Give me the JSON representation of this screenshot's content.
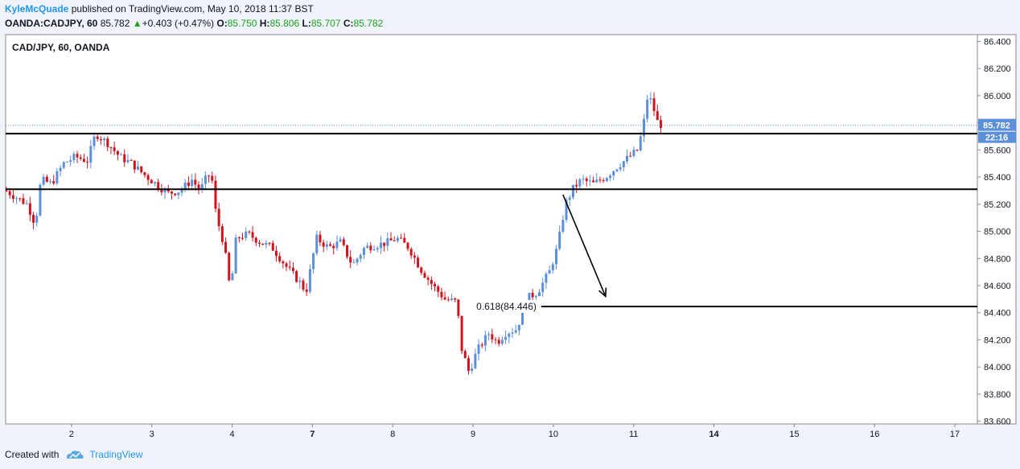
{
  "header": {
    "author": "KyleMcQuade",
    "published_text": "published on TradingView.com, May 10, 2018 11:37 BST",
    "symbol": "OANDA:CADJPY, 60",
    "last": "85.782",
    "change": "+0.403 (+0.47%)",
    "open_label": "O:",
    "open": "85.750",
    "high_label": "H:",
    "high": "85.806",
    "low_label": "L:",
    "low": "85.707",
    "close_label": "C:",
    "close": "85.782"
  },
  "footer": {
    "created_with": "Created with",
    "brand": "TradingView"
  },
  "colors": {
    "up": "#5b8fd9",
    "down": "#d0141e",
    "accent": "#2196f3",
    "line": "#000000"
  },
  "chart_data": {
    "type": "candlestick",
    "title": "CAD/JPY, 60, OANDA",
    "ylim": [
      83.58,
      86.45
    ],
    "y_ticks": [
      "86.400",
      "86.200",
      "86.000",
      "85.800",
      "85.600",
      "85.400",
      "85.200",
      "85.000",
      "84.800",
      "84.600",
      "84.400",
      "84.200",
      "84.000",
      "83.800",
      "83.600"
    ],
    "x_ticks": [
      {
        "label": "2",
        "x": 1
      },
      {
        "label": "3",
        "x": 2
      },
      {
        "label": "4",
        "x": 3
      },
      {
        "label": "7",
        "x": 4,
        "bold": true
      },
      {
        "label": "8",
        "x": 5
      },
      {
        "label": "9",
        "x": 6
      },
      {
        "label": "10",
        "x": 7
      },
      {
        "label": "11",
        "x": 8
      },
      {
        "label": "14",
        "x": 9,
        "bold": true
      },
      {
        "label": "15",
        "x": 10
      },
      {
        "label": "16",
        "x": 11
      },
      {
        "label": "17",
        "x": 12
      }
    ],
    "x_range": [
      0.18,
      12.28
    ],
    "last_price": {
      "value": 85.782,
      "label": "85.782",
      "countdown": "22:16"
    },
    "horizontal_lines": [
      {
        "y": 85.72,
        "x_start": 0.18,
        "x_end": 12.28
      },
      {
        "y": 85.31,
        "x_start": 0.18,
        "x_end": 12.28
      },
      {
        "y": 84.446,
        "x_start": 6.85,
        "x_end": 12.28,
        "label": "0.618(84.446)"
      }
    ],
    "arrow": {
      "from": [
        7.12,
        85.27
      ],
      "to": [
        7.65,
        84.52
      ]
    },
    "ohlc_path": [
      [
        0.18,
        85.3
      ],
      [
        0.45,
        85.2
      ],
      [
        0.55,
        85.05
      ],
      [
        0.62,
        85.38
      ],
      [
        0.75,
        85.35
      ],
      [
        0.9,
        85.5
      ],
      [
        1.05,
        85.55
      ],
      [
        1.2,
        85.52
      ],
      [
        1.3,
        85.72
      ],
      [
        1.45,
        85.65
      ],
      [
        1.6,
        85.55
      ],
      [
        1.75,
        85.5
      ],
      [
        1.9,
        85.42
      ],
      [
        2.05,
        85.35
      ],
      [
        2.2,
        85.28
      ],
      [
        2.35,
        85.3
      ],
      [
        2.5,
        85.38
      ],
      [
        2.6,
        85.3
      ],
      [
        2.7,
        85.42
      ],
      [
        2.75,
        85.38
      ],
      [
        2.8,
        85.12
      ],
      [
        2.9,
        84.9
      ],
      [
        2.98,
        84.55
      ],
      [
        3.05,
        84.95
      ],
      [
        3.2,
        84.98
      ],
      [
        3.35,
        84.92
      ],
      [
        3.5,
        84.88
      ],
      [
        3.7,
        84.72
      ],
      [
        3.85,
        84.62
      ],
      [
        3.92,
        84.55
      ],
      [
        4.05,
        84.95
      ],
      [
        4.2,
        84.88
      ],
      [
        4.35,
        84.92
      ],
      [
        4.5,
        84.75
      ],
      [
        4.65,
        84.88
      ],
      [
        4.8,
        84.9
      ],
      [
        4.95,
        84.92
      ],
      [
        5.05,
        84.95
      ],
      [
        5.2,
        84.88
      ],
      [
        5.35,
        84.72
      ],
      [
        5.5,
        84.6
      ],
      [
        5.65,
        84.5
      ],
      [
        5.8,
        84.48
      ],
      [
        5.85,
        84.15
      ],
      [
        5.95,
        83.96
      ],
      [
        6.05,
        84.12
      ],
      [
        6.2,
        84.25
      ],
      [
        6.3,
        84.18
      ],
      [
        6.4,
        84.25
      ],
      [
        6.55,
        84.28
      ],
      [
        6.65,
        84.5
      ],
      [
        6.8,
        84.55
      ],
      [
        6.95,
        84.7
      ],
      [
        7.05,
        84.88
      ],
      [
        7.15,
        85.2
      ],
      [
        7.25,
        85.32
      ],
      [
        7.35,
        85.38
      ],
      [
        7.5,
        85.35
      ],
      [
        7.65,
        85.4
      ],
      [
        7.8,
        85.48
      ],
      [
        7.95,
        85.55
      ],
      [
        8.05,
        85.6
      ],
      [
        8.12,
        85.78
      ],
      [
        8.18,
        86.02
      ],
      [
        8.25,
        85.9
      ],
      [
        8.3,
        85.8
      ],
      [
        8.35,
        85.782
      ]
    ]
  }
}
